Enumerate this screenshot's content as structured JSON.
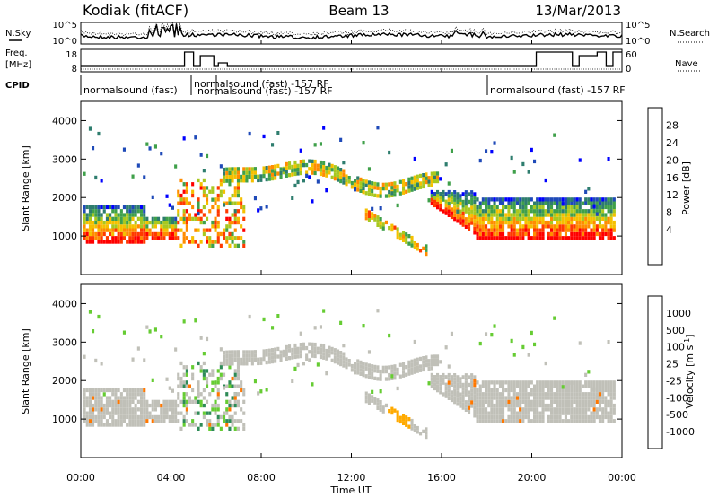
{
  "header": {
    "radar": "Kodiak (fitACF)",
    "beam": "Beam 13",
    "date": "13/Mar/2013"
  },
  "side_labels": {
    "nsky": "N.Sky",
    "nsearch": "N.Search",
    "freq_top": "Freq.",
    "freq_unit": "[MHz]",
    "nave": "Nave",
    "cpid": "CPID"
  },
  "noise_axis": {
    "ticks": [
      "10^5",
      "10^0"
    ],
    "right_ticks": [
      "10^5",
      "10^0"
    ]
  },
  "freq_axis": {
    "ticks": [
      "18",
      "8"
    ],
    "right_ticks": [
      "60",
      "0"
    ]
  },
  "cpid_labels": [
    {
      "label": "normalsound (fast)",
      "x": 0.1
    },
    {
      "label": "normalsound (fast) -157 RF",
      "x": 4.9
    },
    {
      "label": "normalsound (fast) -157 RF",
      "x": 6.0
    },
    {
      "label": "normalsound (fast) -157 RF",
      "x": 18.0
    }
  ],
  "chart_data": [
    {
      "type": "heatmap",
      "name": "power",
      "xlabel": "",
      "ylabel": "Slant Range [km]",
      "xlim": [
        0,
        24
      ],
      "ylim": [
        0,
        4500
      ],
      "yticks": [
        "1000",
        "2000",
        "3000",
        "4000"
      ],
      "colorbar": {
        "label": "Power [dB]",
        "ticks": [
          "28",
          "24",
          "20",
          "16",
          "12",
          "8",
          "4"
        ],
        "colors": [
          "#0000ff",
          "#1f4ab8",
          "#2e7d6e",
          "#3fa04a",
          "#a8c820",
          "#f5c000",
          "#ff8c00",
          "#ff3a00",
          "#ff0000"
        ]
      },
      "regions": [
        {
          "x": [
            0.2,
            2.8
          ],
          "y": [
            800,
            1800
          ],
          "level": "high"
        },
        {
          "x": [
            2.8,
            4.2
          ],
          "y": [
            900,
            1600
          ],
          "level": "mid"
        },
        {
          "x": [
            4.2,
            7.2
          ],
          "y": [
            700,
            2600
          ],
          "level": "mixed"
        },
        {
          "x": [
            7.0,
            15.5
          ],
          "y": [
            2100,
            2900
          ],
          "level": "low"
        },
        {
          "x": [
            12.5,
            15.3
          ],
          "y": [
            600,
            1600
          ],
          "level": "mid"
        },
        {
          "x": [
            15.5,
            17.5
          ],
          "y": [
            1000,
            2100
          ],
          "level": "mid"
        },
        {
          "x": [
            17.5,
            23.5
          ],
          "y": [
            900,
            2000
          ],
          "level": "high"
        }
      ]
    },
    {
      "type": "heatmap",
      "name": "velocity",
      "xlabel": "Time UT",
      "ylabel": "Slant Range [km]",
      "xlim": [
        0,
        24
      ],
      "ylim": [
        0,
        4500
      ],
      "xticks": [
        "00:00",
        "04:00",
        "08:00",
        "12:00",
        "16:00",
        "20:00",
        "00:00"
      ],
      "yticks": [
        "1000",
        "2000",
        "3000",
        "4000"
      ],
      "colorbar": {
        "label": "Velocity [m s^-1]",
        "ticks": [
          "1000",
          "500",
          "100",
          "25",
          "-25",
          "-100",
          "-500",
          "-1000"
        ],
        "colors": [
          "#1d3fb0",
          "#2e6fb0",
          "#2e8b57",
          "#66cc33",
          "#c8c8c0",
          "#c8c8c0",
          "#ffaa00",
          "#ff7700",
          "#ff0000"
        ]
      }
    }
  ],
  "colors": {
    "ground_scatter": "#c0c0b8",
    "axis": "#000000"
  }
}
